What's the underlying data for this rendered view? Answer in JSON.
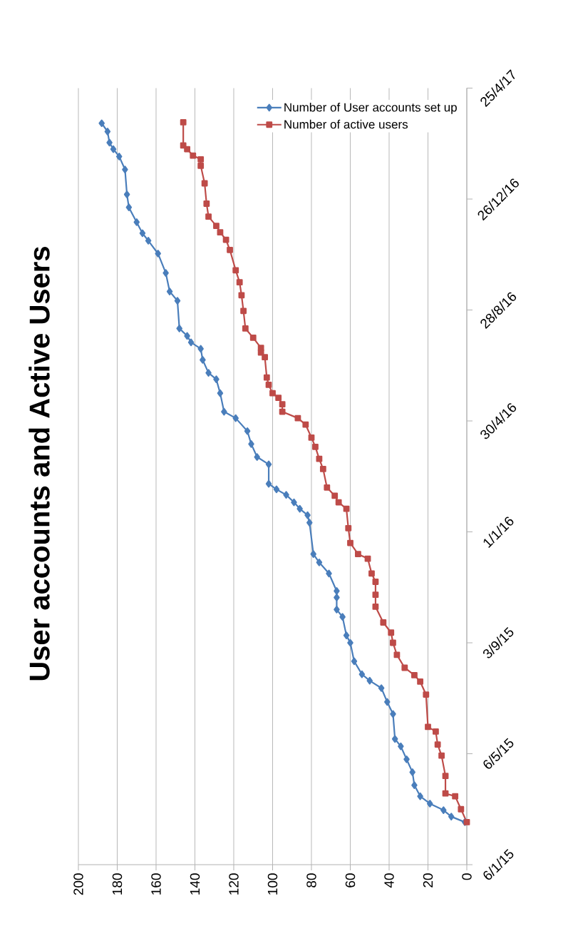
{
  "chart_data": {
    "type": "line",
    "title": "User accounts and Active Users",
    "orientation": "horizontal",
    "ylim": [
      "2015-01-06",
      "2017-04-25"
    ],
    "yticks": [
      {
        "value": "2015-01-06",
        "label": "6/1/15"
      },
      {
        "value": "2015-05-06",
        "label": "6/5/15"
      },
      {
        "value": "2015-09-03",
        "label": "3/9/15"
      },
      {
        "value": "2016-01-01",
        "label": "1/1/16"
      },
      {
        "value": "2016-04-30",
        "label": "30/4/16"
      },
      {
        "value": "2016-08-28",
        "label": "28/8/16"
      },
      {
        "value": "2016-12-26",
        "label": "26/12/16"
      },
      {
        "value": "2017-04-25",
        "label": "25/4/17"
      }
    ],
    "xlim": [
      200,
      0
    ],
    "xticks": [
      0,
      20,
      40,
      60,
      80,
      100,
      120,
      140,
      160,
      180,
      200
    ],
    "grid": "x",
    "legend": "top right",
    "series": [
      {
        "name": "Number of User accounts set up",
        "color": "#4a7ebb",
        "marker": "diamond",
        "x": [
          "2015-02-21",
          "2015-02-27",
          "2015-03-06",
          "2015-03-13",
          "2015-03-21",
          "2015-04-02",
          "2015-04-16",
          "2015-04-30",
          "2015-05-14",
          "2015-05-22",
          "2015-06-18",
          "2015-07-01",
          "2015-07-16",
          "2015-07-24",
          "2015-07-31",
          "2015-08-14",
          "2015-09-03",
          "2015-09-11",
          "2015-10-01",
          "2015-10-09",
          "2015-10-22",
          "2015-10-29",
          "2015-11-17",
          "2015-11-29",
          "2015-12-08",
          "2016-01-11",
          "2016-01-19",
          "2016-01-26",
          "2016-02-02",
          "2016-02-10",
          "2016-02-16",
          "2016-02-22",
          "2016-03-14",
          "2016-03-22",
          "2016-04-05",
          "2016-04-19",
          "2016-05-03",
          "2016-05-10",
          "2016-05-30",
          "2016-06-14",
          "2016-06-21",
          "2016-07-05",
          "2016-07-17",
          "2016-07-24",
          "2016-07-31",
          "2016-08-08",
          "2016-09-07",
          "2016-09-17",
          "2016-10-07",
          "2016-10-28",
          "2016-11-11",
          "2016-11-19",
          "2016-12-01",
          "2016-12-17",
          "2016-12-31",
          "2017-01-27",
          "2017-02-10",
          "2017-02-18",
          "2017-02-25",
          "2017-03-09",
          "2017-03-18"
        ],
        "values": [
          1,
          8,
          12,
          19,
          24,
          27,
          28,
          31,
          34,
          37,
          38,
          41,
          44,
          50,
          54,
          58,
          60,
          62,
          64,
          67,
          67,
          67,
          71,
          76,
          79,
          81,
          82,
          86,
          89,
          93,
          98,
          102,
          102,
          108,
          111,
          113,
          119,
          125,
          127,
          129,
          133,
          136,
          137,
          142,
          144,
          148,
          149,
          153,
          155,
          159,
          164,
          167,
          170,
          174,
          175,
          176,
          179,
          182,
          184,
          185,
          188
        ]
      },
      {
        "name": "Number of active users",
        "color": "#be4b48",
        "marker": "square",
        "x": [
          "2015-02-21",
          "2015-03-07",
          "2015-03-21",
          "2015-03-24",
          "2015-04-12",
          "2015-05-04",
          "2015-05-16",
          "2015-05-30",
          "2015-06-04",
          "2015-07-09",
          "2015-07-23",
          "2015-07-30",
          "2015-08-07",
          "2015-08-21",
          "2015-09-03",
          "2015-09-14",
          "2015-09-25",
          "2015-10-12",
          "2015-10-25",
          "2015-11-08",
          "2015-11-17",
          "2015-12-03",
          "2015-12-08",
          "2015-12-20",
          "2016-01-05",
          "2016-01-26",
          "2016-02-02",
          "2016-02-09",
          "2016-02-18",
          "2016-03-09",
          "2016-03-20",
          "2016-04-02",
          "2016-04-12",
          "2016-04-26",
          "2016-05-03",
          "2016-05-10",
          "2016-05-18",
          "2016-05-25",
          "2016-05-30",
          "2016-06-08",
          "2016-06-16",
          "2016-07-08",
          "2016-07-13",
          "2016-07-18",
          "2016-07-29",
          "2016-08-08",
          "2016-08-27",
          "2016-09-13",
          "2016-09-27",
          "2016-10-10",
          "2016-11-01",
          "2016-11-12",
          "2016-11-20",
          "2016-11-27",
          "2016-12-07",
          "2016-12-21",
          "2017-01-12",
          "2017-01-31",
          "2017-02-07",
          "2017-02-11",
          "2017-02-18",
          "2017-02-22",
          "2017-03-19"
        ],
        "values": [
          0,
          3,
          6,
          11,
          11,
          13,
          15,
          16,
          20,
          21,
          24,
          27,
          32,
          36,
          38,
          39,
          43,
          47,
          47,
          47,
          49,
          51,
          56,
          60,
          61,
          62,
          66,
          68,
          72,
          74,
          76,
          78,
          80,
          83,
          87,
          95,
          95,
          97,
          100,
          102,
          103,
          104,
          106,
          106,
          110,
          114,
          115,
          116,
          117,
          119,
          122,
          124,
          127,
          129,
          133,
          134,
          135,
          137,
          137,
          141,
          144,
          146,
          146
        ]
      }
    ]
  }
}
